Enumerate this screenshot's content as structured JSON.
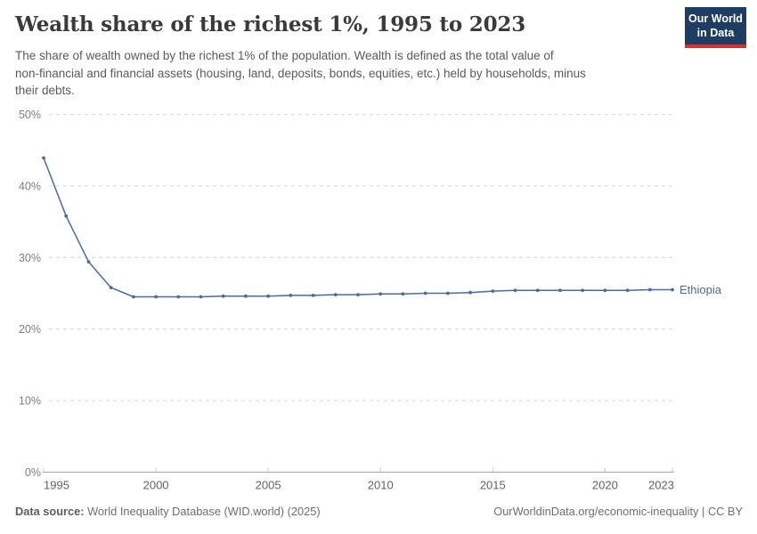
{
  "header": {
    "title": "Wealth share of the richest 1%, 1995 to 2023",
    "subtitle_lines": [
      "The share of wealth owned by the richest 1% of the population. Wealth is defined as the total value of",
      "non-financial and financial assets (housing, land, deposits, bonds, equities, etc.) held by households, minus",
      "their debts."
    ]
  },
  "logo": {
    "line1": "Our World",
    "line2": "in Data",
    "bg_color": "#1d3d63",
    "stripe_color": "#d0342c"
  },
  "chart_data": {
    "type": "line",
    "title": "Wealth share of the richest 1%, 1995 to 2023",
    "x": [
      1995,
      1996,
      1997,
      1998,
      1999,
      2000,
      2001,
      2002,
      2003,
      2004,
      2005,
      2006,
      2007,
      2008,
      2009,
      2010,
      2011,
      2012,
      2013,
      2014,
      2015,
      2016,
      2017,
      2018,
      2019,
      2020,
      2021,
      2022,
      2023
    ],
    "series": [
      {
        "name": "Ethiopia",
        "color": "#4c6a9c",
        "values": [
          43.9,
          35.8,
          29.4,
          25.8,
          24.5,
          24.5,
          24.5,
          24.5,
          24.6,
          24.6,
          24.6,
          24.7,
          24.7,
          24.8,
          24.8,
          24.9,
          24.9,
          25.0,
          25.0,
          25.1,
          25.3,
          25.4,
          25.4,
          25.4,
          25.4,
          25.4,
          25.4,
          25.5,
          25.5
        ]
      }
    ],
    "xlabel": "",
    "ylabel": "",
    "xlim": [
      1995,
      2023
    ],
    "ylim": [
      0,
      50
    ],
    "y_ticks": [
      0,
      10,
      20,
      30,
      40,
      50
    ],
    "y_tick_suffix": "%",
    "x_ticks": [
      1995,
      2000,
      2005,
      2010,
      2015,
      2020,
      2023
    ],
    "grid": "dashed-horizontal",
    "legend_position": "end-of-line",
    "gridline_color": "#dcdcdc",
    "axis_line_color": "#a5a5a5",
    "tick_color": "#c8c8c8",
    "y_label_color": "#7d7d7d",
    "x_label_color": "#616161"
  },
  "footer": {
    "data_source_label": "Data source:",
    "data_source_value": " World Inequality Database (WID.world) (2025)",
    "attribution": "OurWorldinData.org/economic-inequality | CC BY"
  }
}
